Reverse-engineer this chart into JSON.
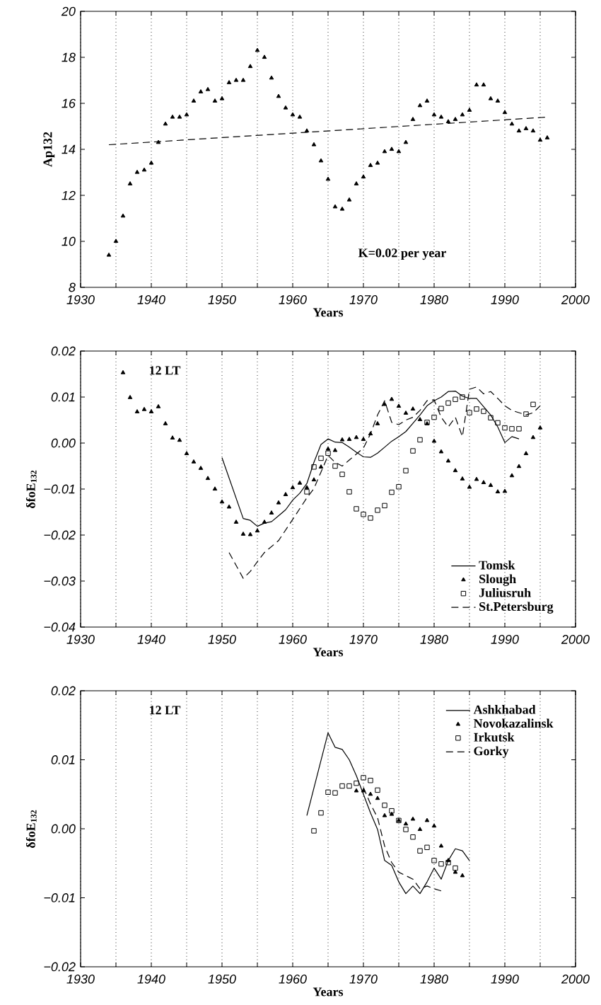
{
  "chart_data": [
    {
      "type": "scatter",
      "xlabel": "Years",
      "ylabel": "Ap132",
      "annotations": [
        "K=0.02 per year"
      ],
      "grid": "x",
      "xlim": [
        1930,
        2000
      ],
      "xticks": [
        1930,
        {
          "value": 1935,
          "label": null
        },
        1940,
        {
          "value": 1945,
          "label": null
        },
        1950,
        {
          "value": 1955,
          "label": null
        },
        1960,
        {
          "value": 1965,
          "label": null
        },
        1970,
        {
          "value": 1975,
          "label": null
        },
        1980,
        {
          "value": 1985,
          "label": null
        },
        1990,
        {
          "value": 1995,
          "label": null
        },
        2000
      ],
      "ylim": [
        8,
        20
      ],
      "yticks": [
        8,
        10,
        12,
        14,
        16,
        18,
        20
      ],
      "series": [
        {
          "marker": "triangle",
          "color": "#000000",
          "x": [
            1934,
            1935,
            1936,
            1937,
            1938,
            1939,
            1940,
            1941,
            1942,
            1943,
            1944,
            1945,
            1946,
            1947,
            1948,
            1949,
            1950,
            1951,
            1952,
            1953,
            1954,
            1955,
            1956,
            1957,
            1958,
            1959,
            1960,
            1961,
            1962,
            1963,
            1964,
            1965,
            1966,
            1967,
            1968,
            1969,
            1970,
            1971,
            1972,
            1973,
            1974,
            1975,
            1976,
            1977,
            1978,
            1979,
            1980,
            1981,
            1982,
            1983,
            1984,
            1985,
            1986,
            1987,
            1988,
            1989,
            1990,
            1991,
            1992,
            1993,
            1994,
            1995,
            1996
          ],
          "values": [
            9.4,
            10.0,
            11.1,
            12.5,
            13.0,
            13.1,
            13.4,
            14.3,
            15.1,
            15.4,
            15.4,
            15.5,
            16.1,
            16.5,
            16.6,
            16.1,
            16.2,
            16.9,
            17.0,
            17.0,
            17.6,
            18.3,
            18.0,
            17.1,
            16.3,
            15.8,
            15.5,
            15.4,
            14.8,
            14.2,
            13.5,
            12.7,
            11.5,
            11.4,
            11.8,
            12.5,
            12.8,
            13.3,
            13.4,
            13.9,
            14.0,
            13.9,
            14.3,
            15.3,
            15.9,
            16.1,
            15.5,
            15.4,
            15.2,
            15.3,
            15.5,
            15.7,
            16.8,
            16.8,
            16.2,
            16.1,
            15.6,
            15.1,
            14.8,
            14.9,
            14.8,
            14.4,
            14.5
          ]
        },
        {
          "type": "line",
          "line_style": "dashed",
          "color": "#000000",
          "x": [
            1934,
            1996
          ],
          "values": [
            14.2,
            15.4
          ]
        }
      ]
    },
    {
      "type": "line",
      "xlabel": "Years",
      "ylabel": "δfoE$_{132}$",
      "annotations": [
        "12 LT"
      ],
      "grid": "x",
      "legend": "bottom right",
      "xlim": [
        1930,
        2000
      ],
      "xticks": [
        1930,
        {
          "value": 1935,
          "label": null
        },
        1940,
        {
          "value": 1945,
          "label": null
        },
        1950,
        {
          "value": 1955,
          "label": null
        },
        1960,
        {
          "value": 1965,
          "label": null
        },
        1970,
        {
          "value": 1975,
          "label": null
        },
        1980,
        {
          "value": 1985,
          "label": null
        },
        1990,
        {
          "value": 1995,
          "label": null
        },
        2000
      ],
      "ylim": [
        -0.04,
        0.02
      ],
      "yticks": [
        {
          "value": -0.04,
          "label": "−0.04"
        },
        {
          "value": -0.03,
          "label": "−0.03"
        },
        {
          "value": -0.02,
          "label": "−0.02"
        },
        {
          "value": -0.01,
          "label": "−0.01"
        },
        {
          "value": 0,
          "label": "0.00"
        },
        {
          "value": 0.01,
          "label": "0.01"
        },
        {
          "value": 0.02,
          "label": "0.02"
        }
      ],
      "series": [
        {
          "name": "Tomsk",
          "line_style": "solid",
          "color": "#000000",
          "x": [
            1950,
            1953,
            1954,
            1955,
            1956,
            1957,
            1958,
            1959,
            1960,
            1961,
            1962,
            1963,
            1964,
            1965,
            1966,
            1967,
            1968,
            1969,
            1970,
            1971,
            1972,
            1973,
            1974,
            1975,
            1976,
            1977,
            1978,
            1979,
            1980,
            1981,
            1982,
            1983,
            1984,
            1985,
            1986,
            1987,
            1988,
            1989,
            1990,
            1991,
            1992
          ],
          "values": [
            -0.0032,
            -0.0164,
            -0.0168,
            -0.0181,
            -0.0174,
            -0.0171,
            -0.0158,
            -0.0145,
            -0.0124,
            -0.0109,
            -0.0088,
            -0.0042,
            -0.0003,
            0.0009,
            0.0002,
            0.0001,
            -0.0009,
            -0.002,
            -0.003,
            -0.0031,
            -0.0022,
            -0.0009,
            0.0004,
            0.0014,
            0.0025,
            0.0043,
            0.0061,
            0.0081,
            0.0092,
            0.01,
            0.0112,
            0.0113,
            0.0102,
            0.0097,
            0.0097,
            0.0079,
            0.0061,
            0.0035,
            0.0001,
            0.0014,
            0.0009
          ]
        },
        {
          "name": "Slough",
          "type": "scatter",
          "marker": "triangle",
          "color": "#000000",
          "x": [
            1936,
            1937,
            1938,
            1939,
            1940,
            1941,
            1942,
            1943,
            1944,
            1945,
            1946,
            1947,
            1948,
            1949,
            1950,
            1951,
            1952,
            1953,
            1954,
            1955,
            1956,
            1957,
            1958,
            1959,
            1960,
            1961,
            1962,
            1963,
            1964,
            1965,
            1966,
            1967,
            1968,
            1969,
            1970,
            1971,
            1972,
            1973,
            1974,
            1975,
            1976,
            1977,
            1978,
            1979,
            1980,
            1981,
            1982,
            1983,
            1984,
            1985,
            1986,
            1987,
            1988,
            1989,
            1990,
            1991,
            1992,
            1993,
            1994,
            1995
          ],
          "values": [
            0.0153,
            0.0099,
            0.0068,
            0.0073,
            0.0068,
            0.0079,
            0.0042,
            0.0011,
            0.0006,
            -0.0023,
            -0.0041,
            -0.0055,
            -0.0077,
            -0.01,
            -0.0128,
            -0.0139,
            -0.0172,
            -0.0198,
            -0.0199,
            -0.0191,
            -0.0172,
            -0.0152,
            -0.013,
            -0.0112,
            -0.0097,
            -0.0087,
            -0.0097,
            -0.008,
            -0.0052,
            -0.0013,
            -0.0016,
            0.0007,
            0.0008,
            0.0012,
            0.0008,
            0.002,
            0.0042,
            0.0084,
            0.0095,
            0.008,
            0.0065,
            0.0074,
            0.0051,
            0.0042,
            0.0004,
            -0.0019,
            -0.0039,
            -0.006,
            -0.0078,
            -0.0096,
            -0.0079,
            -0.0086,
            -0.0092,
            -0.0106,
            -0.0105,
            -0.0071,
            -0.0051,
            -0.0023,
            0.0012,
            0.0033
          ]
        },
        {
          "name": "Juliusruh",
          "type": "scatter",
          "marker": "square",
          "color": "#000000",
          "x": [
            1962,
            1963,
            1964,
            1965,
            1966,
            1967,
            1968,
            1969,
            1970,
            1971,
            1972,
            1973,
            1974,
            1975,
            1976,
            1977,
            1978,
            1979,
            1980,
            1981,
            1982,
            1983,
            1984,
            1985,
            1986,
            1987,
            1988,
            1989,
            1990,
            1991,
            1992,
            1993,
            1994
          ],
          "values": [
            -0.0106,
            -0.0052,
            -0.0033,
            -0.0022,
            -0.005,
            -0.0068,
            -0.0106,
            -0.0143,
            -0.0155,
            -0.0163,
            -0.0146,
            -0.0136,
            -0.0107,
            -0.0095,
            -0.006,
            -0.0017,
            0.0007,
            0.0045,
            0.0056,
            0.0075,
            0.0087,
            0.0095,
            0.01,
            0.0066,
            0.0074,
            0.0069,
            0.0055,
            0.0044,
            0.0033,
            0.0031,
            0.0031,
            0.0063,
            0.0084
          ]
        },
        {
          "name": "St.Petersburg",
          "line_style": "dashed",
          "color": "#000000",
          "x": [
            1951,
            1953,
            1954,
            1955,
            1956,
            1958,
            1960,
            1962,
            1963,
            1964,
            1965,
            1966,
            1967,
            1968,
            1970,
            1971,
            1972,
            1973,
            1974,
            1975,
            1976,
            1977,
            1978,
            1979,
            1980,
            1981,
            1982,
            1983,
            1984,
            1985,
            1986,
            1987,
            1988,
            1989,
            1990,
            1991,
            1993,
            1994,
            1995
          ],
          "values": [
            -0.0238,
            -0.0294,
            -0.0279,
            -0.0258,
            -0.0238,
            -0.0212,
            -0.0166,
            -0.0119,
            -0.0099,
            -0.0063,
            -0.0027,
            -0.0042,
            -0.005,
            -0.0037,
            -0.0011,
            0.002,
            0.0061,
            0.0092,
            0.0045,
            0.004,
            0.005,
            0.0056,
            0.0071,
            0.0092,
            0.0094,
            0.0056,
            0.0035,
            0.0056,
            0.0014,
            0.0117,
            0.0122,
            0.0107,
            0.0112,
            0.0097,
            0.0081,
            0.0071,
            0.0061,
            0.0066,
            0.0081
          ]
        }
      ]
    },
    {
      "type": "line",
      "xlabel": "Years",
      "ylabel": "δfoE$_{132}$",
      "annotations": [
        "12 LT"
      ],
      "grid": "x",
      "legend": "top right",
      "xlim": [
        1930,
        2000
      ],
      "xticks": [
        1930,
        {
          "value": 1935,
          "label": null
        },
        1940,
        {
          "value": 1945,
          "label": null
        },
        1950,
        {
          "value": 1955,
          "label": null
        },
        1960,
        {
          "value": 1965,
          "label": null
        },
        1970,
        {
          "value": 1975,
          "label": null
        },
        1980,
        {
          "value": 1985,
          "label": null
        },
        1990,
        {
          "value": 1995,
          "label": null
        },
        2000
      ],
      "ylim": [
        -0.02,
        0.02
      ],
      "yticks": [
        {
          "value": -0.02,
          "label": "−0.02"
        },
        {
          "value": -0.01,
          "label": "−0.01"
        },
        {
          "value": 0,
          "label": "0.00"
        },
        {
          "value": 0.01,
          "label": "0.01"
        },
        {
          "value": 0.02,
          "label": "0.02"
        }
      ],
      "series": [
        {
          "name": "Ashkhabad",
          "line_style": "solid",
          "color": "#000000",
          "x": [
            1962,
            1965,
            1966,
            1967,
            1968,
            1969,
            1970,
            1971,
            1972,
            1973,
            1974,
            1975,
            1976,
            1977,
            1978,
            1979,
            1980,
            1981,
            1982,
            1983,
            1984,
            1985
          ],
          "values": [
            0.0019,
            0.0139,
            0.0118,
            0.0115,
            0.01,
            0.0077,
            0.005,
            0.0023,
            -0.0001,
            -0.0046,
            -0.0053,
            -0.0077,
            -0.0094,
            -0.0083,
            -0.0094,
            -0.0077,
            -0.0057,
            -0.0073,
            -0.0046,
            -0.0029,
            -0.0032,
            -0.0046
          ]
        },
        {
          "name": "Novokazalinsk",
          "type": "scatter",
          "marker": "triangle",
          "color": "#000000",
          "x": [
            1969,
            1970,
            1971,
            1972,
            1973,
            1974,
            1975,
            1976,
            1977,
            1978,
            1979,
            1980,
            1981,
            1982,
            1983,
            1984
          ],
          "values": [
            0.0055,
            0.0055,
            0.005,
            0.0044,
            0.0019,
            0.0021,
            0.0012,
            0.0007,
            0.0014,
            -0.0001,
            0.0012,
            0.0004,
            -0.0025,
            -0.0046,
            -0.0063,
            -0.0068
          ]
        },
        {
          "name": "Irkutsk",
          "type": "scatter",
          "marker": "square",
          "color": "#000000",
          "x": [
            1963,
            1964,
            1965,
            1966,
            1967,
            1968,
            1969,
            1970,
            1971,
            1972,
            1973,
            1974,
            1975,
            1976,
            1977,
            1978,
            1979,
            1980,
            1981,
            1982,
            1983
          ],
          "values": [
            -0.0003,
            0.0023,
            0.0053,
            0.0052,
            0.0062,
            0.0062,
            0.0066,
            0.0074,
            0.007,
            0.0056,
            0.0034,
            0.0026,
            0.0012,
            -0.0001,
            -0.0012,
            -0.0032,
            -0.0027,
            -0.0046,
            -0.0051,
            -0.0049,
            -0.0057
          ]
        },
        {
          "name": "Gorky",
          "line_style": "dashed",
          "color": "#000000",
          "x": [
            1970,
            1971,
            1972,
            1973,
            1974,
            1975,
            1976,
            1977,
            1978,
            1979,
            1980,
            1981
          ],
          "values": [
            0.006,
            0.0036,
            0.0016,
            -0.0025,
            -0.0049,
            -0.0063,
            -0.0068,
            -0.0073,
            -0.0087,
            -0.0083,
            -0.0087,
            -0.009
          ]
        }
      ]
    }
  ]
}
